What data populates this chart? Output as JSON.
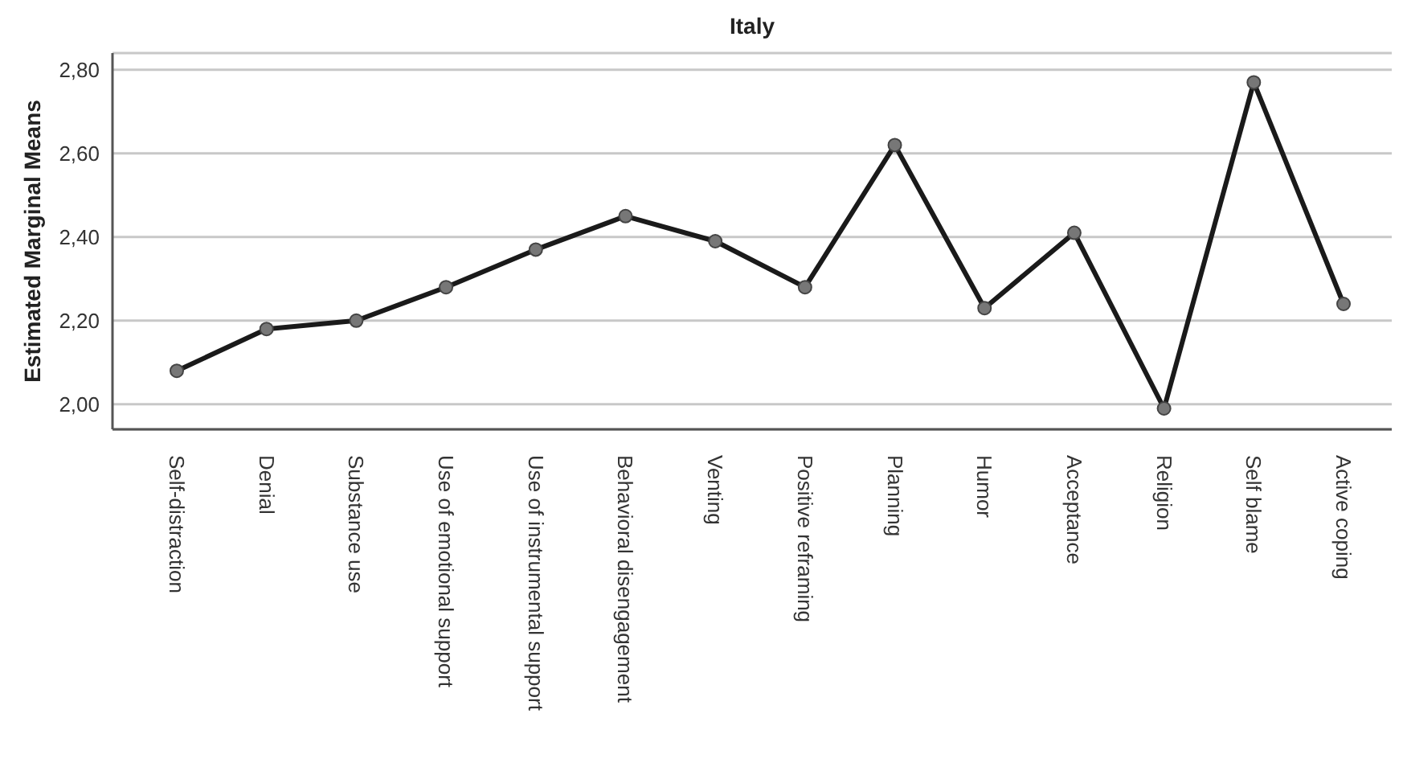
{
  "chart_data": {
    "type": "line",
    "title": "Italy",
    "ylabel": "Estimated Marginal Means",
    "categories": [
      "Self-distraction",
      "Denial",
      "Substance use",
      "Use of emotional support",
      "Use of instrumental support",
      "Behavioral disengagement",
      "Venting",
      "Positive reframing",
      "Planning",
      "Humor",
      "Acceptance",
      "Religion",
      "Self blame",
      "Active coping"
    ],
    "series": [
      {
        "color": "#1a1a1a",
        "values": [
          2.08,
          2.18,
          2.2,
          2.28,
          2.37,
          2.45,
          2.39,
          2.28,
          2.62,
          2.23,
          2.41,
          1.99,
          2.77,
          2.24
        ]
      }
    ],
    "ylim": [
      1.94,
      2.84
    ],
    "yticks": [
      {
        "value": 2.0,
        "label": "2,00"
      },
      {
        "value": 2.2,
        "label": "2,20"
      },
      {
        "value": 2.4,
        "label": "2,40"
      },
      {
        "value": 2.6,
        "label": "2,60"
      },
      {
        "value": 2.8,
        "label": "2,80"
      }
    ],
    "grid": "y",
    "marker": "circle",
    "line_style": "solid"
  }
}
